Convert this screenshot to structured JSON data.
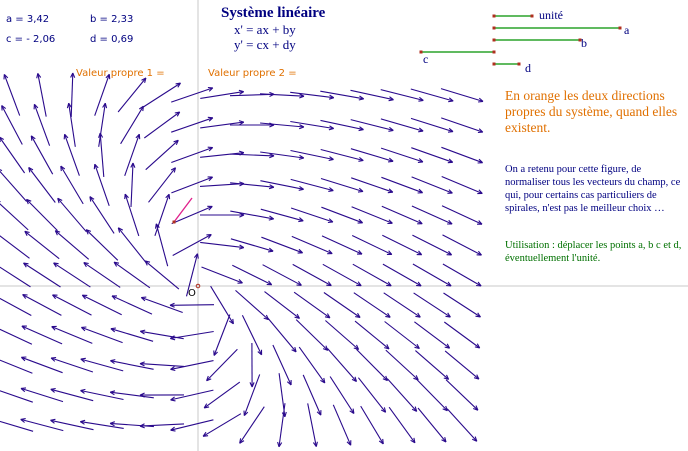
{
  "coefficients": {
    "a": "a = 3,42",
    "b": "b = 2,33",
    "c": "c = - 2,06",
    "d": "d = 0,69"
  },
  "system": {
    "title": "Système linéaire",
    "eq1": "x' = ax + by",
    "eq2": "y' = cx + dy"
  },
  "eigen": {
    "label1": "Valeur propre 1 =",
    "label2": "Valeur propre 2 ="
  },
  "segments": {
    "unit": "unité",
    "a": "a",
    "b": "b",
    "c": "c",
    "d": "d"
  },
  "text": {
    "orange": "En orange les deux directions propres du système, quand elles existent.",
    "blue": "On a retenu pour cette figure, de normaliser tous les vecteurs du champ, ce qui, pour certains cas particuliers de spirales, n'est pas le meilleur choix …",
    "green": "Utilisation : déplacer les points a, b c et d, éventuellement l'unité."
  },
  "origin_label": "O",
  "colors": {
    "field": "#2a0a8c",
    "axes": "#c8c8c8",
    "segment": "#009000",
    "point": "#b03020",
    "magenta": "#e0208c",
    "orange": "#e07000",
    "navy": "#000080",
    "green": "#007000"
  },
  "system_params": {
    "a": 3.42,
    "b": 2.33,
    "c": -2.06,
    "d": 0.69
  }
}
